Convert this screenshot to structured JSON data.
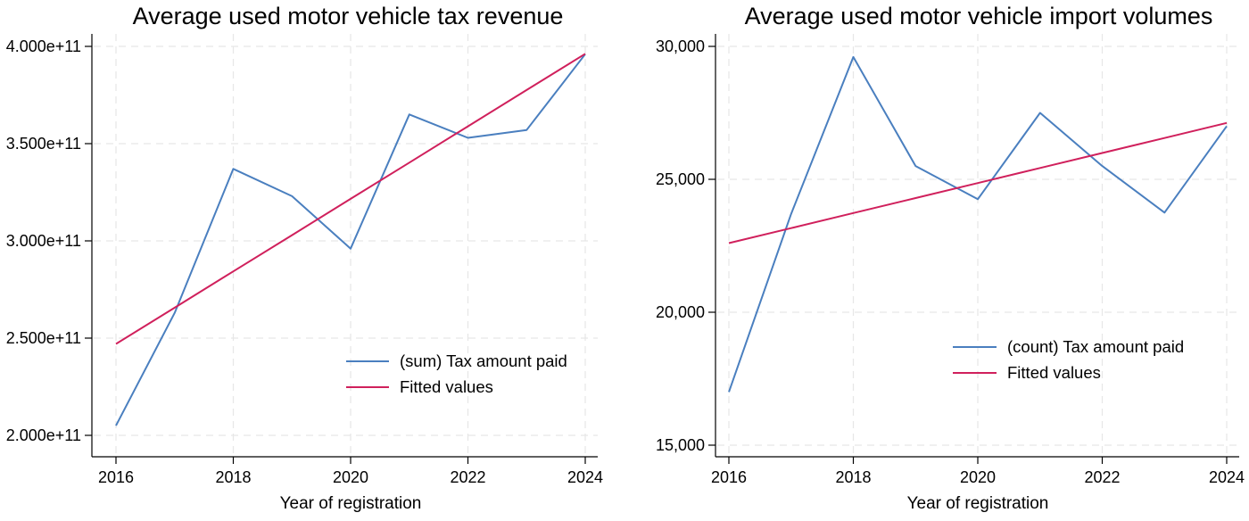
{
  "colors": {
    "series": "#4a7fbf",
    "fitted": "#d0205c",
    "grid": "#e7e7e7",
    "axis": "#000000"
  },
  "chart_data": [
    {
      "type": "line",
      "title": "Average used motor vehicle tax revenue",
      "xlabel": "Year of registration",
      "ylabel": "",
      "xlim": [
        2016,
        2024
      ],
      "ylim": [
        200000000000,
        400000000000
      ],
      "xticks": [
        2016,
        2018,
        2020,
        2022,
        2024
      ],
      "xtick_labels": [
        "2016",
        "2018",
        "2020",
        "2022",
        "2024"
      ],
      "yticks": [
        200000000000,
        250000000000,
        300000000000,
        350000000000,
        400000000000
      ],
      "ytick_labels": [
        "2.000e+11",
        "2.500e+11",
        "3.000e+11",
        "3.500e+11",
        "4.000e+11"
      ],
      "grid": true,
      "legend_position": "bottom-right",
      "x": [
        2016,
        2017,
        2018,
        2019,
        2020,
        2021,
        2022,
        2023,
        2024
      ],
      "series": [
        {
          "name": "(sum) Tax amount paid",
          "color": "#4a7fbf",
          "values": [
            205000000000,
            263000000000,
            337000000000,
            323000000000,
            296000000000,
            365000000000,
            353000000000,
            357000000000,
            396000000000
          ]
        },
        {
          "name": "Fitted values",
          "color": "#d0205c",
          "values": [
            247000000000,
            265650000000,
            284300000000,
            302950000000,
            321600000000,
            340250000000,
            358900000000,
            377550000000,
            396200000000
          ]
        }
      ]
    },
    {
      "type": "line",
      "title": "Average used motor vehicle import volumes",
      "xlabel": "Year of registration",
      "ylabel": "",
      "xlim": [
        2016,
        2024
      ],
      "ylim": [
        15000,
        30000
      ],
      "xticks": [
        2016,
        2018,
        2020,
        2022,
        2024
      ],
      "xtick_labels": [
        "2016",
        "2018",
        "2020",
        "2022",
        "2024"
      ],
      "yticks": [
        15000,
        20000,
        25000,
        30000
      ],
      "ytick_labels": [
        "15,000",
        "20,000",
        "25,000",
        "30,000"
      ],
      "grid": true,
      "legend_position": "bottom-right",
      "x": [
        2016,
        2017,
        2018,
        2019,
        2020,
        2021,
        2022,
        2023,
        2024
      ],
      "series": [
        {
          "name": "(count) Tax amount paid",
          "color": "#4a7fbf",
          "values": [
            17000,
            23700,
            29600,
            25500,
            24250,
            27500,
            25500,
            23750,
            27000
          ]
        },
        {
          "name": "Fitted values",
          "color": "#d0205c",
          "values": [
            22600,
            23165,
            23730,
            24295,
            24860,
            25425,
            25990,
            26555,
            27120
          ]
        }
      ]
    }
  ]
}
